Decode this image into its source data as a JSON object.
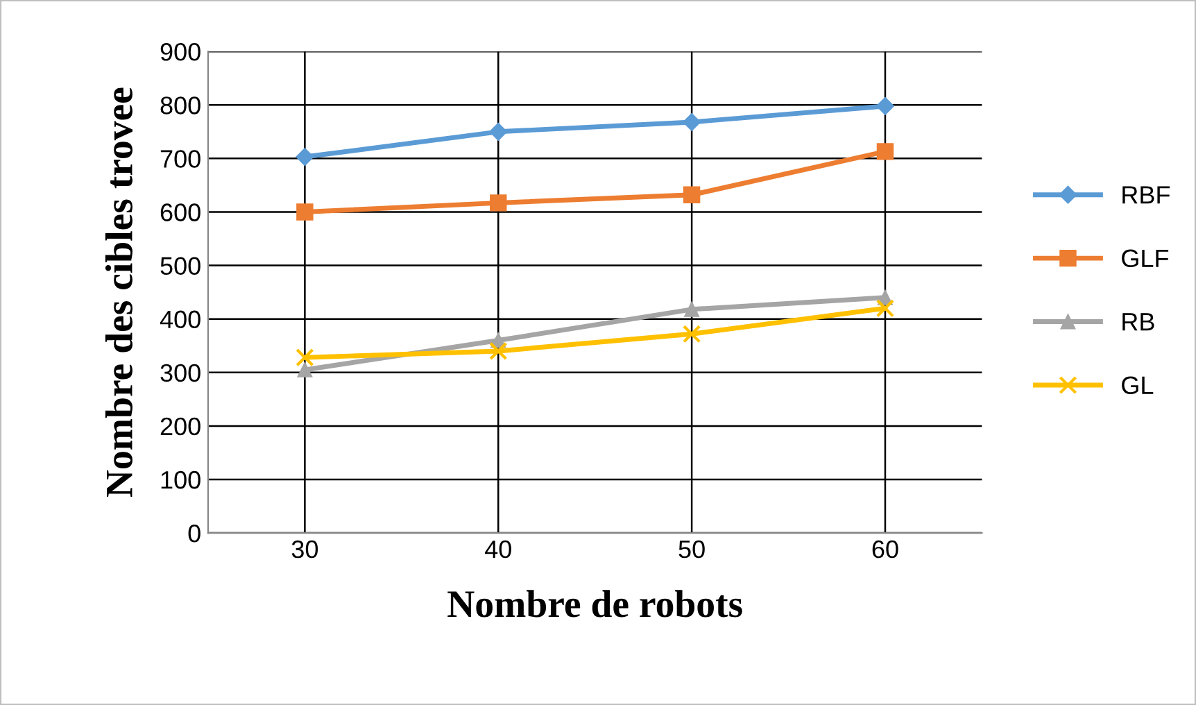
{
  "chart_data": {
    "type": "line",
    "xlabel": "Nombre de robots",
    "ylabel": "Nombre des cibles trovee",
    "categories": [
      "30",
      "40",
      "50",
      "60"
    ],
    "ylim": [
      0,
      900
    ],
    "yticks": [
      0,
      100,
      200,
      300,
      400,
      500,
      600,
      700,
      800,
      900
    ],
    "grid": true,
    "legend": "right",
    "series": [
      {
        "name": "RBF",
        "color": "#5b9bd5",
        "marker": "diamond",
        "values": [
          703,
          750,
          768,
          798
        ]
      },
      {
        "name": "GLF",
        "color": "#ed7d31",
        "marker": "square",
        "values": [
          600,
          617,
          632,
          713
        ]
      },
      {
        "name": "RB",
        "color": "#a5a5a5",
        "marker": "triangle",
        "values": [
          305,
          360,
          418,
          440
        ]
      },
      {
        "name": "GL",
        "color": "#ffc000",
        "marker": "cross",
        "values": [
          328,
          340,
          372,
          420
        ]
      }
    ]
  }
}
